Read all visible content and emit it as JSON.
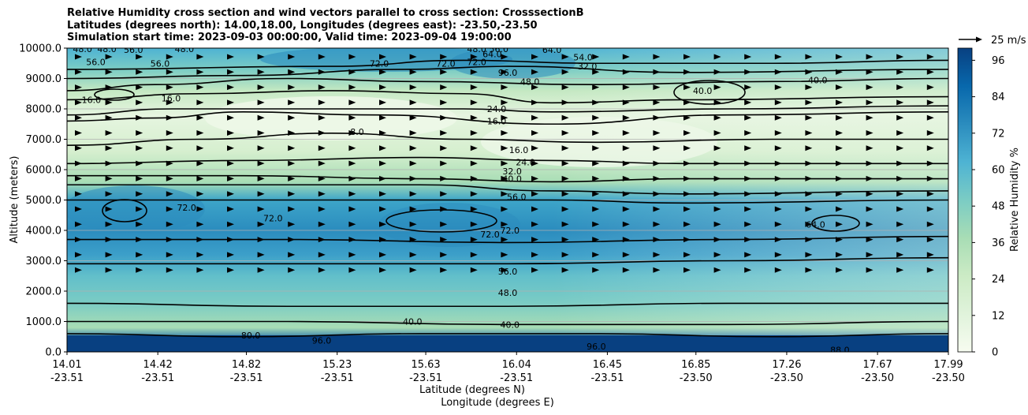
{
  "title": {
    "line1": "Relative Humidity cross section and wind vectors parallel to cross section: CrosssectionB",
    "line2": "Latitudes (degrees north): 14.00,18.00, Longitudes (degrees east): -23.50,-23.50",
    "line3": "Simulation start time: 2023-09-03 00:00:00, Valid time: 2023-09-04 19:00:00"
  },
  "chart_data": {
    "type": "heatmap",
    "description_kind": "cross-section contour with wind vectors",
    "ylabel": "Altitude (meters)",
    "xlabel_lat": "Latitude (degrees N)",
    "xlabel_lon": "Longitude (degrees E)",
    "ylim": [
      0,
      10000
    ],
    "y_ticks": [
      "0.0",
      "1000.0",
      "2000.0",
      "3000.0",
      "4000.0",
      "5000.0",
      "6000.0",
      "7000.0",
      "8000.0",
      "9000.0",
      "10000.0"
    ],
    "x_ticks_lat": [
      "14.01",
      "14.42",
      "14.82",
      "15.23",
      "15.63",
      "16.04",
      "16.45",
      "16.85",
      "17.26",
      "17.67",
      "17.99"
    ],
    "x_ticks_lon": [
      "-23.51",
      "-23.51",
      "-23.51",
      "-23.51",
      "-23.51",
      "-23.51",
      "-23.51",
      "-23.50",
      "-23.50",
      "-23.50",
      "-23.50"
    ],
    "x_tick_values": [
      14.01,
      14.42,
      14.82,
      15.23,
      15.63,
      16.04,
      16.45,
      16.85,
      17.26,
      17.67,
      17.99
    ],
    "xlim": [
      14.01,
      17.99
    ],
    "colorbar": {
      "label": "Relative Humidity %",
      "ticks": [
        "0",
        "12",
        "24",
        "36",
        "48",
        "60",
        "72",
        "84",
        "96"
      ],
      "range": [
        0,
        100
      ],
      "colors": [
        "#f7fcf0",
        "#e0f3db",
        "#ccebc5",
        "#a8ddb5",
        "#7bccc4",
        "#4eb3d3",
        "#2b8cbe",
        "#0868ac",
        "#084081"
      ]
    },
    "grid": "horizontal",
    "wind_key": {
      "label": "25 m/s"
    },
    "contour_labels": [
      {
        "text": "48.0",
        "lat": 14.08,
        "alt": 9970
      },
      {
        "text": "48.0",
        "lat": 14.19,
        "alt": 9970
      },
      {
        "text": "56.0",
        "lat": 14.31,
        "alt": 9950
      },
      {
        "text": "48.0",
        "lat": 14.54,
        "alt": 9980
      },
      {
        "text": "56.0",
        "lat": 14.14,
        "alt": 9550
      },
      {
        "text": "56.0",
        "lat": 14.43,
        "alt": 9500
      },
      {
        "text": "16.0",
        "lat": 14.12,
        "alt": 8300
      },
      {
        "text": "16.0",
        "lat": 14.48,
        "alt": 8350
      },
      {
        "text": "72.0",
        "lat": 15.42,
        "alt": 9500
      },
      {
        "text": "72.0",
        "lat": 15.86,
        "alt": 9550
      },
      {
        "text": "64.0",
        "lat": 15.93,
        "alt": 9800
      },
      {
        "text": "48.0",
        "lat": 15.86,
        "alt": 9980
      },
      {
        "text": "56.0",
        "lat": 15.96,
        "alt": 9980
      },
      {
        "text": "96.0",
        "lat": 16.0,
        "alt": 9200
      },
      {
        "text": "48.0",
        "lat": 16.1,
        "alt": 8900
      },
      {
        "text": "64.0",
        "lat": 16.2,
        "alt": 9950
      },
      {
        "text": "72.0",
        "lat": 15.72,
        "alt": 9500
      },
      {
        "text": "54.0",
        "lat": 16.34,
        "alt": 9700
      },
      {
        "text": "32.0",
        "lat": 16.36,
        "alt": 9400
      },
      {
        "text": "40.0",
        "lat": 16.88,
        "alt": 8600
      },
      {
        "text": "40.0",
        "lat": 17.4,
        "alt": 8950
      },
      {
        "text": "24.0",
        "lat": 15.95,
        "alt": 8000
      },
      {
        "text": "16.0",
        "lat": 15.95,
        "alt": 7600
      },
      {
        "text": "8.0",
        "lat": 15.32,
        "alt": 7250
      },
      {
        "text": "16.0",
        "lat": 16.05,
        "alt": 6650
      },
      {
        "text": "24.0",
        "lat": 16.08,
        "alt": 6250
      },
      {
        "text": "32.0",
        "lat": 16.02,
        "alt": 5950
      },
      {
        "text": "40.0",
        "lat": 16.02,
        "alt": 5700
      },
      {
        "text": "56.0",
        "lat": 16.04,
        "alt": 5100
      },
      {
        "text": "72.0",
        "lat": 14.55,
        "alt": 4750
      },
      {
        "text": "72.0",
        "lat": 14.94,
        "alt": 4400
      },
      {
        "text": "72.0",
        "lat": 16.01,
        "alt": 4000
      },
      {
        "text": "72.0",
        "lat": 15.92,
        "alt": 3870
      },
      {
        "text": "64.0",
        "lat": 17.39,
        "alt": 4200
      },
      {
        "text": "56.0",
        "lat": 16.0,
        "alt": 2650
      },
      {
        "text": "48.0",
        "lat": 16.0,
        "alt": 1950
      },
      {
        "text": "40.0",
        "lat": 16.01,
        "alt": 900
      },
      {
        "text": "40.0",
        "lat": 15.57,
        "alt": 1000
      },
      {
        "text": "96.0",
        "lat": 16.4,
        "alt": 180
      },
      {
        "text": "96.0",
        "lat": 15.16,
        "alt": 380
      },
      {
        "text": "88.0",
        "lat": 17.5,
        "alt": 60
      },
      {
        "text": "80.0",
        "lat": 14.84,
        "alt": 550
      }
    ]
  }
}
